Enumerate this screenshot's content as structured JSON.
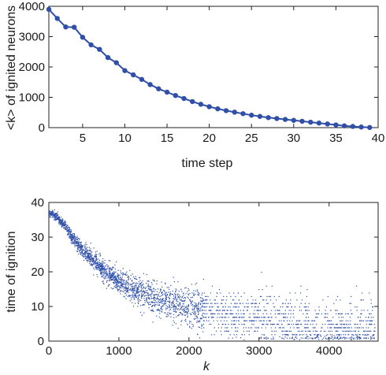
{
  "chart_data": [
    {
      "type": "line",
      "xlabel": "time step",
      "ylabel": "<k> of ignited neurons",
      "xlim": [
        1,
        40
      ],
      "ylim": [
        0,
        4000
      ],
      "xticks": [
        5,
        10,
        15,
        20,
        25,
        30,
        35,
        40
      ],
      "yticks": [
        0,
        1000,
        2000,
        3000,
        4000
      ],
      "grid": false,
      "color": "#2f4fa8",
      "series": [
        {
          "x": [
            1,
            2,
            3,
            4,
            5,
            6,
            7,
            8,
            9,
            10,
            11,
            12,
            13,
            14,
            15,
            16,
            17,
            18,
            19,
            20,
            21,
            22,
            23,
            24,
            25,
            26,
            27,
            28,
            29,
            30,
            31,
            32,
            33,
            34,
            35,
            36,
            37,
            38,
            39
          ],
          "values": [
            3900,
            3600,
            3320,
            3310,
            2980,
            2730,
            2580,
            2310,
            2140,
            1880,
            1740,
            1590,
            1420,
            1280,
            1170,
            1060,
            960,
            860,
            770,
            690,
            620,
            560,
            510,
            460,
            410,
            370,
            330,
            300,
            270,
            240,
            210,
            180,
            150,
            120,
            90,
            60,
            40,
            20,
            5
          ]
        }
      ]
    },
    {
      "type": "scatter",
      "xlabel": "k",
      "ylabel": "time of ignition",
      "xlim": [
        0,
        4700
      ],
      "ylim": [
        0,
        40
      ],
      "xticks": [
        0,
        1000,
        2000,
        3000,
        4000
      ],
      "yticks": [
        0,
        10,
        20,
        30,
        40
      ],
      "grid": false,
      "color": "#2f4fa8",
      "trend": {
        "x": [
          0,
          100,
          200,
          300,
          400,
          500,
          600,
          800,
          1000,
          1200,
          1500,
          1800,
          2000,
          2500,
          3000,
          3500,
          4000,
          4500
        ],
        "y": [
          37,
          36,
          34,
          31,
          28,
          26,
          24,
          20,
          17,
          15,
          13,
          11,
          10,
          8,
          6.5,
          5,
          4,
          3.5
        ]
      },
      "points_estimated": 3000
    }
  ]
}
